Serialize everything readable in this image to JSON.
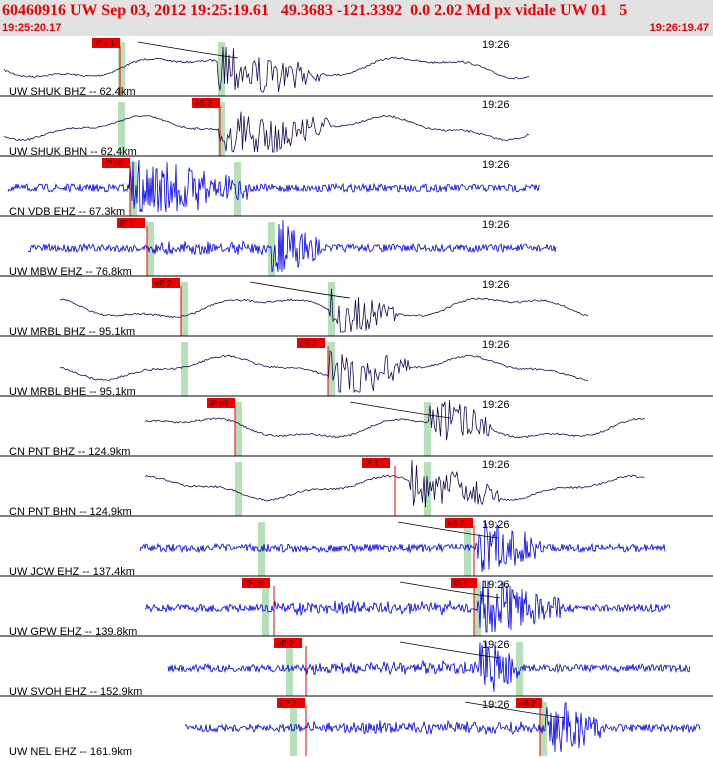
{
  "header": {
    "title": "60460916 UW Sep 03, 2012 19:25:19.61   49.3683 -121.3392  0.0 2.02 Md px vidale UW 01   5",
    "start_time": "19:25:20.17",
    "end_time": "19:26:19.47"
  },
  "colors": {
    "header_bg": "#e2e2e2",
    "header_text": "#ee0000",
    "trace_bhz": "#1a0a55",
    "trace_ehz": "#0000ee",
    "pick_red": "#ee0000",
    "window_green": "#b8e0b8",
    "divider": "#000000"
  },
  "chart_data": {
    "type": "seismogram",
    "time_axis_label": "19:26",
    "time_range": [
      "19:25:20.17",
      "19:26:19.47"
    ],
    "traces": [
      {
        "label": "UW SHUK BHZ -- 62.4km",
        "station": "SHUK",
        "channel": "BHZ",
        "distance_km": 62.4,
        "pick": "iP c 1",
        "kind": "broadband"
      },
      {
        "label": "UW SHUK BHN -- 62.4km",
        "station": "SHUK",
        "channel": "BHN",
        "distance_km": 62.4,
        "pick": "eS 2",
        "kind": "broadband"
      },
      {
        "label": "CN VDB EHZ -- 67.3km",
        "station": "VDB",
        "channel": "EHZ",
        "distance_km": 67.3,
        "pick": "iP c0",
        "kind": "short-period"
      },
      {
        "label": "UW MBW EHZ -- 76.8km",
        "station": "MBW",
        "channel": "EHZ",
        "distance_km": 76.8,
        "pick": "iP 1",
        "kind": "short-period"
      },
      {
        "label": "UW MRBL BHZ -- 95.1km",
        "station": "MRBL",
        "channel": "BHZ",
        "distance_km": 95.1,
        "pick": "eP 2",
        "kind": "broadband"
      },
      {
        "label": "UW MRBL BHE -- 95.1km",
        "station": "MRBL",
        "channel": "BHE",
        "distance_km": 95.1,
        "pick": "eS 2",
        "kind": "broadband"
      },
      {
        "label": "CN PNT BHZ -- 124.9km",
        "station": "PNT",
        "channel": "BHZ",
        "distance_km": 124.9,
        "pick": "iP c0",
        "kind": "broadband"
      },
      {
        "label": "CN PNT BHN -- 124.9km",
        "station": "PNT",
        "channel": "BHN",
        "distance_km": 124.9,
        "pick": "iS 1",
        "kind": "broadband"
      },
      {
        "label": "UW JCW EHZ -- 137.4km",
        "station": "JCW",
        "channel": "EHZ",
        "distance_km": 137.4,
        "pick": "eS 2",
        "kind": "short-period"
      },
      {
        "label": "UW GPW EHZ -- 139.8km",
        "station": "GPW",
        "channel": "EHZ",
        "distance_km": 139.8,
        "pick": "iP c0",
        "pick2": "iS 1",
        "kind": "short-period"
      },
      {
        "label": "UW SVOH EHZ -- 152.9km",
        "station": "SVOH",
        "channel": "EHZ",
        "distance_km": 152.9,
        "pick": "eP 2",
        "kind": "short-period"
      },
      {
        "label": "UW NEL EHZ -- 161.9km",
        "station": "NEL",
        "channel": "EHZ",
        "distance_km": 161.9,
        "pick": "eP 2",
        "pick2": "eS 2",
        "kind": "short-period"
      }
    ]
  }
}
